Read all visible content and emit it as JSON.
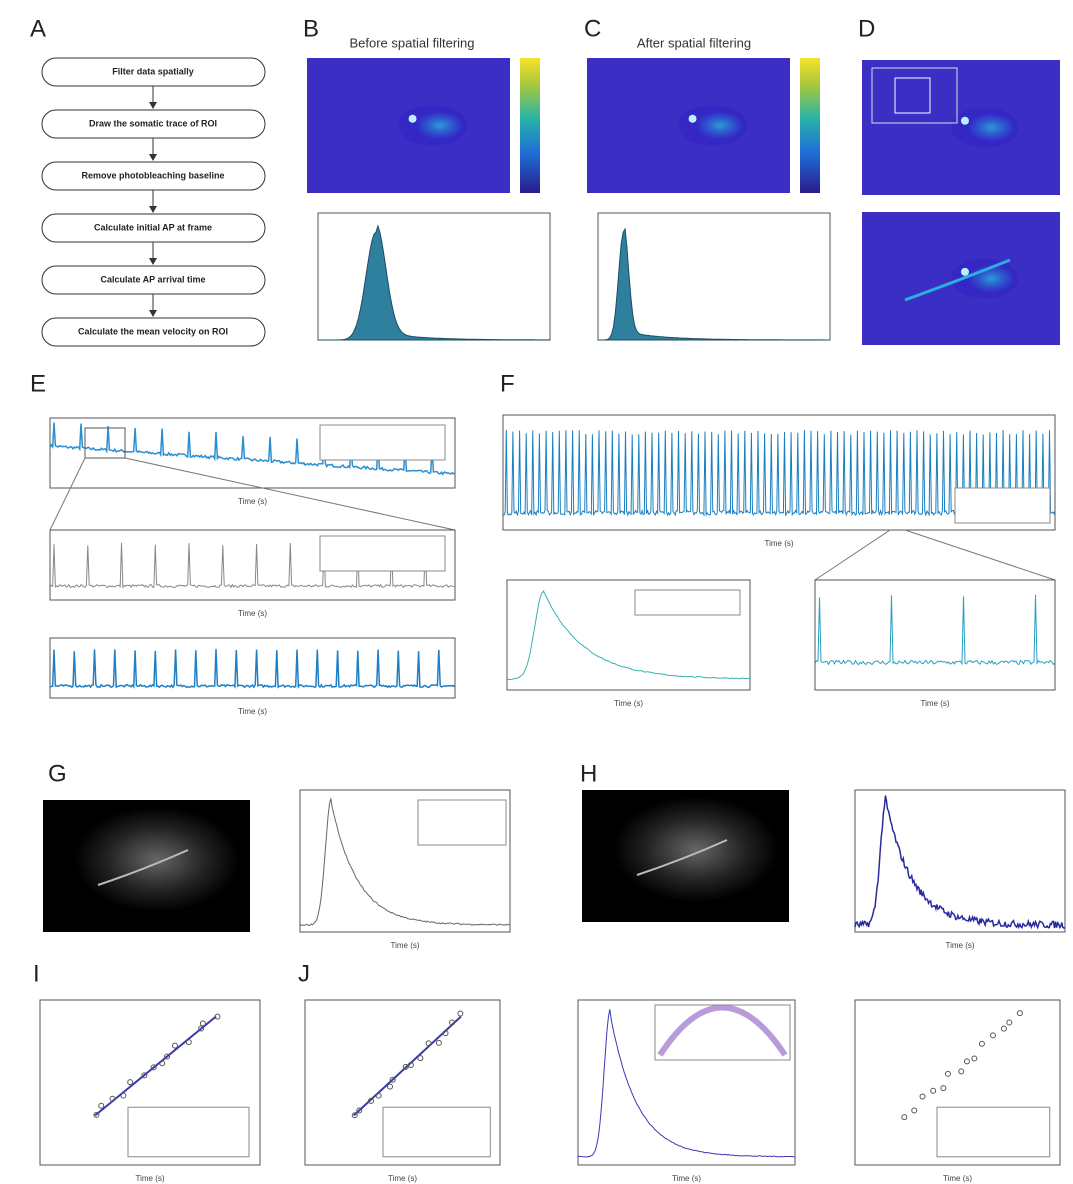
{
  "labels": [
    "A",
    "B",
    "C",
    "D",
    "E",
    "F",
    "G",
    "H",
    "I",
    "J"
  ],
  "flowchart": {
    "steps": [
      "Filter data spatially",
      "Draw the somatic trace of ROI",
      "Remove photobleaching baseline",
      "Calculate initial AP at frame",
      "Calculate AP arrival time",
      "Calculate the mean velocity on ROI"
    ]
  },
  "panel_b": {
    "title": "Before spatial filtering"
  },
  "panel_c": {
    "title": "After spatial filtering"
  },
  "axis": {
    "time": "Time (s)"
  }
}
